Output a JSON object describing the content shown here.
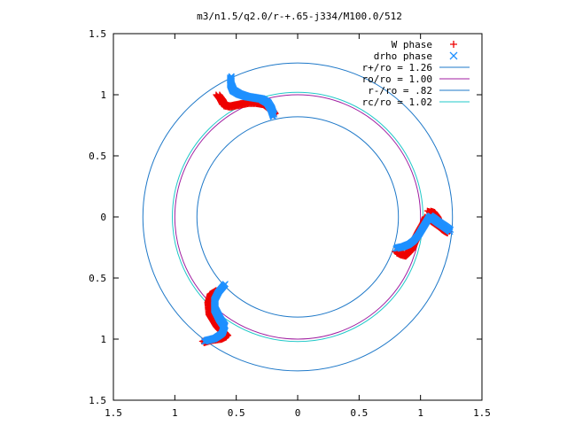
{
  "chart_data": {
    "type": "scatter",
    "title": "m3/n1.5/q2.0/r-+.65-j334/M100.0/512",
    "xlabel": "",
    "ylabel": "",
    "xlim": [
      -1.5,
      1.5
    ],
    "ylim": [
      -1.5,
      1.5
    ],
    "xticks": [
      -1.5,
      -1,
      -0.5,
      0,
      0.5,
      1,
      1.5
    ],
    "yticks": [
      -1.5,
      -1,
      -0.5,
      0,
      0.5,
      1,
      1.5
    ],
    "xtick_labels": [
      "1.5",
      "1",
      "0.5",
      "0",
      "0.5",
      "1",
      "1.5"
    ],
    "ytick_labels": [
      "1.5",
      "1",
      "0.5",
      "0",
      "0.5",
      "1",
      "1.5"
    ],
    "grid": false,
    "legend_position": "top-right",
    "circles": [
      {
        "name": "r+/ro = 1.26",
        "radius": 1.26,
        "color": "#1e78c8"
      },
      {
        "name": "ro/ro = 1.00",
        "radius": 1.0,
        "color": "#a01ea0"
      },
      {
        "name": "r-/ro = .82",
        "radius": 0.82,
        "color": "#1e78c8"
      },
      {
        "name": "rc/ro = 1.02",
        "radius": 1.02,
        "color": "#20c8c8"
      }
    ],
    "series": [
      {
        "name": "W phase",
        "marker": "+",
        "color": "#ee0000",
        "arms": [
          [
            [
              -0.65,
              1.0
            ],
            [
              -0.62,
              0.96
            ],
            [
              -0.6,
              0.92
            ],
            [
              -0.55,
              0.91
            ],
            [
              -0.5,
              0.92
            ],
            [
              -0.45,
              0.93
            ],
            [
              -0.4,
              0.94
            ],
            [
              -0.34,
              0.94
            ],
            [
              -0.28,
              0.93
            ],
            [
              -0.24,
              0.9
            ],
            [
              -0.21,
              0.87
            ],
            [
              -0.19,
              0.84
            ]
          ],
          [
            [
              1.07,
              0.05
            ],
            [
              1.1,
              0.04
            ],
            [
              1.13,
              0.0
            ],
            [
              1.15,
              -0.05
            ],
            [
              1.17,
              -0.09
            ],
            [
              1.2,
              -0.11
            ],
            [
              1.22,
              -0.12
            ],
            [
              1.05,
              0.0
            ],
            [
              1.03,
              -0.05
            ],
            [
              0.99,
              -0.12
            ],
            [
              0.95,
              -0.2
            ],
            [
              0.92,
              -0.27
            ],
            [
              0.88,
              -0.31
            ],
            [
              0.84,
              -0.3
            ],
            [
              0.8,
              -0.28
            ]
          ],
          [
            [
              -0.65,
              -0.6
            ],
            [
              -0.7,
              -0.63
            ],
            [
              -0.72,
              -0.7
            ],
            [
              -0.71,
              -0.8
            ],
            [
              -0.65,
              -0.9
            ],
            [
              -0.58,
              -0.97
            ],
            [
              -0.62,
              -0.99
            ],
            [
              -0.7,
              -1.0
            ],
            [
              -0.77,
              -1.02
            ]
          ]
        ]
      },
      {
        "name": "drho phase",
        "marker": "x",
        "color": "#1e90ff",
        "arms": [
          [
            [
              -0.55,
              1.14
            ],
            [
              -0.55,
              1.08
            ],
            [
              -0.53,
              1.03
            ],
            [
              -0.48,
              1.0
            ],
            [
              -0.42,
              0.98
            ],
            [
              -0.36,
              0.97
            ],
            [
              -0.3,
              0.96
            ],
            [
              -0.25,
              0.93
            ],
            [
              -0.22,
              0.88
            ],
            [
              -0.2,
              0.82
            ]
          ],
          [
            [
              0.8,
              -0.26
            ],
            [
              0.85,
              -0.25
            ],
            [
              0.9,
              -0.23
            ],
            [
              0.94,
              -0.2
            ],
            [
              0.98,
              -0.15
            ],
            [
              1.01,
              -0.1
            ],
            [
              1.04,
              -0.05
            ],
            [
              1.07,
              0.0
            ],
            [
              1.1,
              -0.02
            ],
            [
              1.14,
              -0.05
            ],
            [
              1.2,
              -0.09
            ],
            [
              1.24,
              -0.12
            ]
          ],
          [
            [
              -0.6,
              -0.56
            ],
            [
              -0.65,
              -0.62
            ],
            [
              -0.68,
              -0.68
            ],
            [
              -0.68,
              -0.76
            ],
            [
              -0.64,
              -0.84
            ],
            [
              -0.6,
              -0.9
            ],
            [
              -0.62,
              -0.96
            ],
            [
              -0.68,
              -1.0
            ],
            [
              -0.76,
              -1.02
            ]
          ]
        ]
      }
    ]
  }
}
